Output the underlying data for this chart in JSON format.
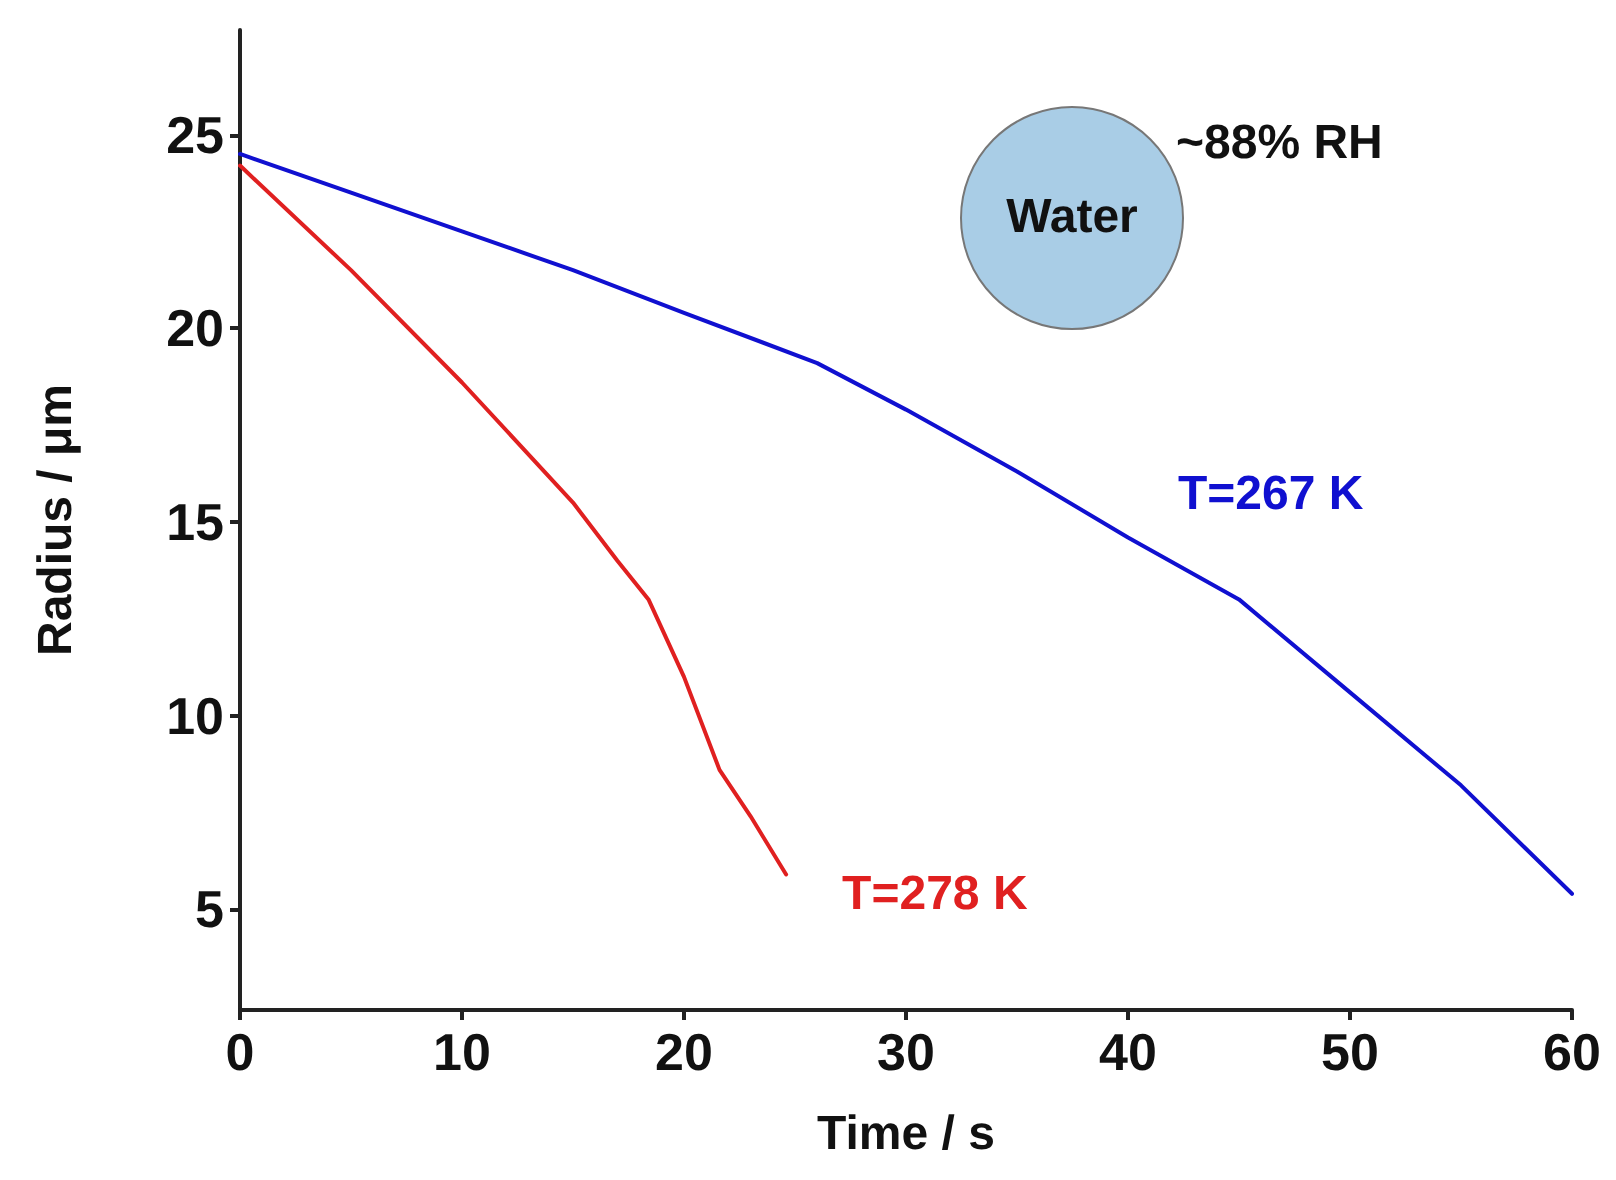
{
  "chart_data": {
    "type": "line",
    "xlabel": "Time / s",
    "ylabel": "Radius / μm",
    "xlim": [
      0,
      60
    ],
    "xticks": [
      0,
      10,
      20,
      30,
      40,
      50,
      60
    ],
    "ylim": [
      2.4,
      27.7
    ],
    "yticks": [
      5,
      10,
      15,
      20,
      25
    ],
    "grid": false,
    "legend": false,
    "marker": "none",
    "line_style": "solid",
    "annotations": [
      "~88% RH",
      "Water"
    ],
    "series": [
      {
        "name": "T=267 K",
        "color": "#1010d0",
        "x": [
          0,
          5,
          10,
          15,
          20,
          26,
          30,
          35,
          40,
          45,
          50,
          55,
          60
        ],
        "values": [
          24.5,
          23.5,
          22.5,
          21.5,
          20.4,
          19.1,
          17.9,
          16.3,
          14.6,
          13.0,
          10.6,
          8.2,
          5.4
        ]
      },
      {
        "name": "T=278 K",
        "color": "#e02020",
        "x": [
          0,
          5,
          10,
          15,
          17,
          18.4,
          20,
          21.6,
          23,
          24.6
        ],
        "values": [
          24.2,
          21.5,
          18.6,
          15.5,
          14.0,
          13.0,
          11.0,
          8.6,
          7.4,
          5.9
        ]
      }
    ]
  }
}
